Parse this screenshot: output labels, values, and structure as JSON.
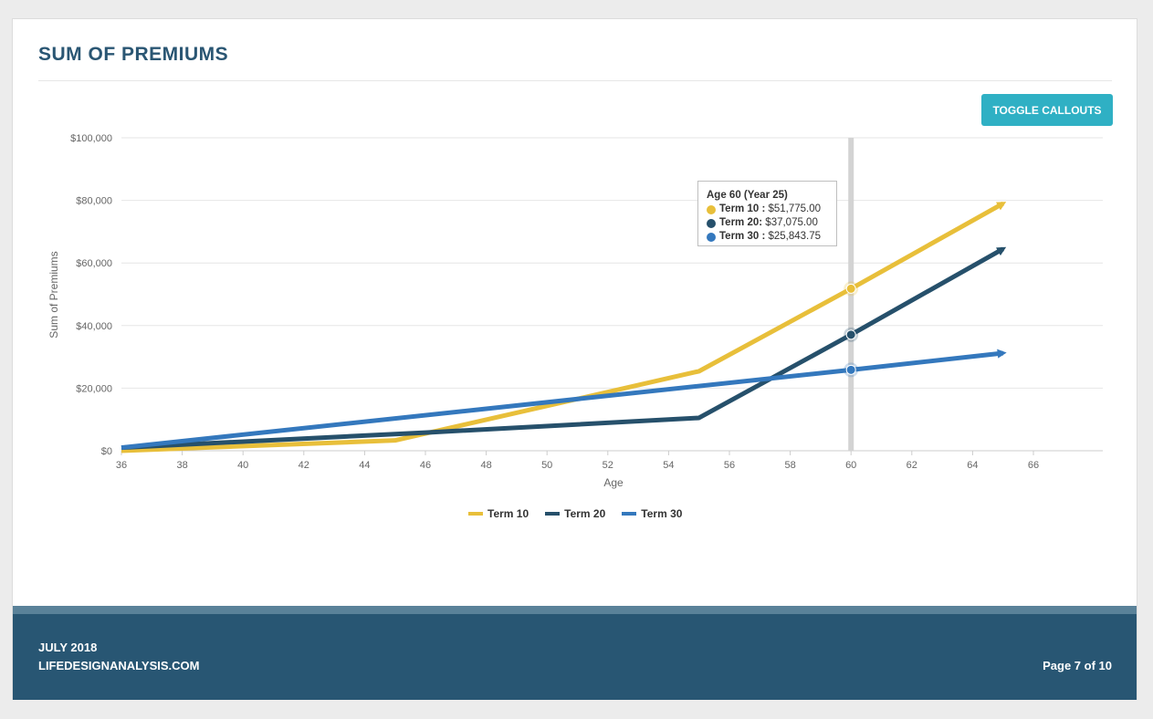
{
  "header": {
    "title": "SUM OF PREMIUMS"
  },
  "toolbar": {
    "toggle_label": "TOGGLE CALLOUTS"
  },
  "chart_data": {
    "type": "line",
    "title": "",
    "xlabel": "Age",
    "ylabel": "Sum of Premiums",
    "xlim": [
      36,
      68
    ],
    "ylim": [
      0,
      100000
    ],
    "x_ticks": [
      36,
      38,
      40,
      42,
      44,
      46,
      48,
      50,
      52,
      54,
      56,
      58,
      60,
      62,
      64,
      66
    ],
    "y_ticks": [
      {
        "value": 0,
        "label": "$0"
      },
      {
        "value": 20000,
        "label": "$20,000"
      },
      {
        "value": 40000,
        "label": "$40,000"
      },
      {
        "value": 60000,
        "label": "$60,000"
      },
      {
        "value": 80000,
        "label": "$80,000"
      },
      {
        "value": 100000,
        "label": "$100,000"
      }
    ],
    "series": [
      {
        "name": "Term 10",
        "color": "#e8bf3a",
        "x": [
          36,
          45,
          55,
          60,
          65
        ],
        "values": [
          0,
          3300,
          25400,
          51775,
          79000
        ]
      },
      {
        "name": "Term 20",
        "color": "#26506b",
        "x": [
          36,
          46,
          55,
          60,
          65
        ],
        "values": [
          1000,
          5800,
          10500,
          37075,
          64500
        ]
      },
      {
        "name": "Term 30",
        "color": "#3478bd",
        "x": [
          36,
          60,
          65
        ],
        "values": [
          1000,
          25843.75,
          31200
        ]
      }
    ],
    "crosshair_x": 60,
    "legend": "bottom-center",
    "tooltip": {
      "header": "Age 60 (Year 25)",
      "rows": [
        {
          "label": "Term 10 :",
          "value": "$51,775.00",
          "color": "#e8bf3a"
        },
        {
          "label": "Term 20:",
          "value": "$37,075.00",
          "color": "#26506b"
        },
        {
          "label": "Term 30 :",
          "value": "$25,843.75",
          "color": "#3478bd"
        }
      ]
    }
  },
  "legend_labels": [
    "Term 10",
    "Term 20",
    "Term 30"
  ],
  "footer": {
    "date": "JULY 2018",
    "site": "LIFEDESIGNANALYSIS.COM",
    "page": "Page 7 of 10"
  }
}
